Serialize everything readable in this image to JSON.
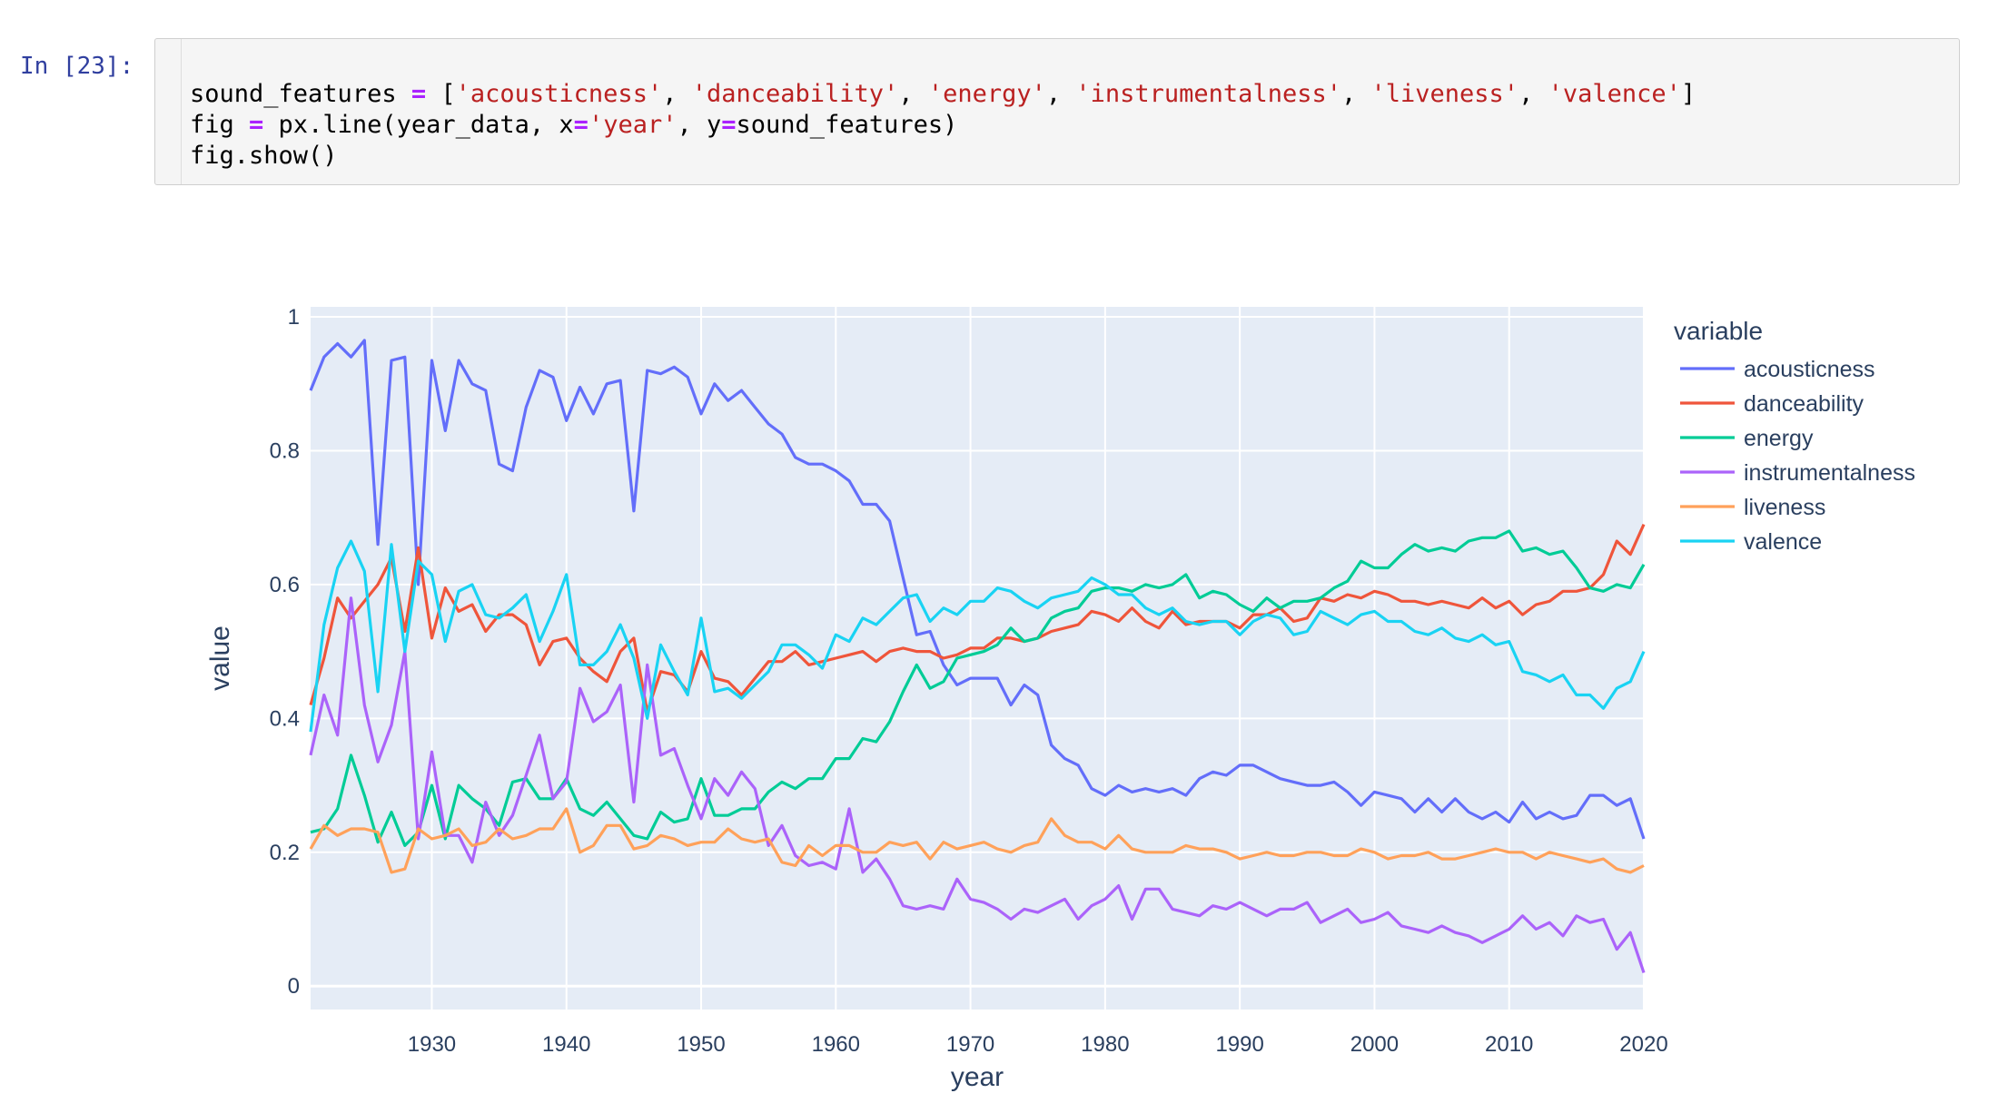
{
  "notebook": {
    "prompt": "In [23]:",
    "code_lines": [
      [
        [
          "sound_features ",
          ""
        ],
        [
          "=",
          "op"
        ],
        [
          " [",
          ""
        ],
        [
          "'acousticness'",
          "str"
        ],
        [
          ", ",
          ""
        ],
        [
          "'danceability'",
          "str"
        ],
        [
          ", ",
          ""
        ],
        [
          "'energy'",
          "str"
        ],
        [
          ", ",
          ""
        ],
        [
          "'instrumentalness'",
          "str"
        ],
        [
          ", ",
          ""
        ],
        [
          "'liveness'",
          "str"
        ],
        [
          ", ",
          ""
        ],
        [
          "'valence'",
          "str"
        ],
        [
          "]",
          ""
        ]
      ],
      [
        [
          "fig ",
          ""
        ],
        [
          "=",
          "op"
        ],
        [
          " px.line(year_data, x",
          ""
        ],
        [
          "=",
          "op"
        ],
        [
          "'year'",
          "str"
        ],
        [
          ", y",
          ""
        ],
        [
          "=",
          "op"
        ],
        [
          "sound_features)",
          ""
        ]
      ],
      [
        [
          "fig.show()",
          ""
        ]
      ]
    ]
  },
  "chart_data": {
    "type": "line",
    "xlabel": "year",
    "ylabel": "value",
    "legend_title": "variable",
    "xlim": [
      1921,
      2020
    ],
    "ylim": [
      -0.035,
      1.015
    ],
    "x_ticks": [
      1930,
      1940,
      1950,
      1960,
      1970,
      1980,
      1990,
      2000,
      2010,
      2020
    ],
    "y_ticks": [
      0,
      0.2,
      0.4,
      0.6,
      0.8,
      1
    ],
    "y_tick_labels": [
      "0",
      "0.2",
      "0.4",
      "0.6",
      "0.8",
      "1"
    ],
    "x_start": 1921,
    "x_step": 1,
    "plot_background": "#e5ecf6",
    "grid": true,
    "legend_position": "right",
    "series": [
      {
        "name": "acousticness",
        "color": "#636efa",
        "values": [
          0.89,
          0.94,
          0.96,
          0.94,
          0.965,
          0.66,
          0.935,
          0.94,
          0.6,
          0.935,
          0.83,
          0.935,
          0.9,
          0.89,
          0.78,
          0.77,
          0.865,
          0.92,
          0.91,
          0.845,
          0.895,
          0.855,
          0.9,
          0.905,
          0.71,
          0.92,
          0.915,
          0.925,
          0.91,
          0.855,
          0.9,
          0.875,
          0.89,
          0.865,
          0.84,
          0.825,
          0.79,
          0.78,
          0.78,
          0.77,
          0.755,
          0.72,
          0.72,
          0.695,
          0.61,
          0.525,
          0.53,
          0.48,
          0.45,
          0.46,
          0.46,
          0.46,
          0.42,
          0.45,
          0.435,
          0.36,
          0.34,
          0.33,
          0.295,
          0.285,
          0.3,
          0.29,
          0.295,
          0.29,
          0.295,
          0.285,
          0.31,
          0.32,
          0.315,
          0.33,
          0.33,
          0.32,
          0.31,
          0.305,
          0.3,
          0.3,
          0.305,
          0.29,
          0.27,
          0.29,
          0.285,
          0.28,
          0.26,
          0.28,
          0.26,
          0.28,
          0.26,
          0.25,
          0.26,
          0.245,
          0.275,
          0.25,
          0.26,
          0.25,
          0.255,
          0.285,
          0.285,
          0.27,
          0.28,
          0.22
        ]
      },
      {
        "name": "danceability",
        "color": "#ef553b",
        "values": [
          0.42,
          0.49,
          0.58,
          0.55,
          0.575,
          0.6,
          0.64,
          0.53,
          0.655,
          0.52,
          0.595,
          0.56,
          0.57,
          0.53,
          0.555,
          0.555,
          0.54,
          0.48,
          0.515,
          0.52,
          0.49,
          0.47,
          0.455,
          0.5,
          0.52,
          0.41,
          0.47,
          0.465,
          0.44,
          0.5,
          0.46,
          0.455,
          0.435,
          0.46,
          0.485,
          0.485,
          0.5,
          0.48,
          0.485,
          0.49,
          0.495,
          0.5,
          0.485,
          0.5,
          0.505,
          0.5,
          0.5,
          0.49,
          0.495,
          0.505,
          0.505,
          0.52,
          0.52,
          0.515,
          0.52,
          0.53,
          0.535,
          0.54,
          0.56,
          0.555,
          0.545,
          0.565,
          0.545,
          0.535,
          0.56,
          0.54,
          0.545,
          0.545,
          0.545,
          0.535,
          0.555,
          0.555,
          0.565,
          0.545,
          0.55,
          0.58,
          0.575,
          0.585,
          0.58,
          0.59,
          0.585,
          0.575,
          0.575,
          0.57,
          0.575,
          0.57,
          0.565,
          0.58,
          0.565,
          0.575,
          0.555,
          0.57,
          0.575,
          0.59,
          0.59,
          0.595,
          0.615,
          0.665,
          0.645,
          0.69
        ]
      },
      {
        "name": "energy",
        "color": "#00cc96",
        "values": [
          0.23,
          0.235,
          0.265,
          0.345,
          0.285,
          0.215,
          0.26,
          0.21,
          0.23,
          0.3,
          0.22,
          0.3,
          0.28,
          0.265,
          0.24,
          0.305,
          0.31,
          0.28,
          0.28,
          0.31,
          0.265,
          0.255,
          0.275,
          0.25,
          0.225,
          0.22,
          0.26,
          0.245,
          0.25,
          0.31,
          0.255,
          0.255,
          0.265,
          0.265,
          0.29,
          0.305,
          0.295,
          0.31,
          0.31,
          0.34,
          0.34,
          0.37,
          0.365,
          0.395,
          0.44,
          0.48,
          0.445,
          0.455,
          0.49,
          0.495,
          0.5,
          0.51,
          0.535,
          0.515,
          0.52,
          0.55,
          0.56,
          0.565,
          0.59,
          0.595,
          0.595,
          0.59,
          0.6,
          0.595,
          0.6,
          0.615,
          0.58,
          0.59,
          0.585,
          0.57,
          0.56,
          0.58,
          0.565,
          0.575,
          0.575,
          0.58,
          0.595,
          0.605,
          0.635,
          0.625,
          0.625,
          0.645,
          0.66,
          0.65,
          0.655,
          0.65,
          0.665,
          0.67,
          0.67,
          0.68,
          0.65,
          0.655,
          0.645,
          0.65,
          0.625,
          0.595,
          0.59,
          0.6,
          0.595,
          0.63
        ]
      },
      {
        "name": "instrumentalness",
        "color": "#ab63fa",
        "values": [
          0.345,
          0.435,
          0.375,
          0.58,
          0.42,
          0.335,
          0.39,
          0.5,
          0.22,
          0.35,
          0.225,
          0.225,
          0.185,
          0.275,
          0.225,
          0.255,
          0.315,
          0.375,
          0.28,
          0.305,
          0.445,
          0.395,
          0.41,
          0.45,
          0.275,
          0.48,
          0.345,
          0.355,
          0.3,
          0.25,
          0.31,
          0.285,
          0.32,
          0.295,
          0.21,
          0.24,
          0.195,
          0.18,
          0.185,
          0.175,
          0.265,
          0.17,
          0.19,
          0.16,
          0.12,
          0.115,
          0.12,
          0.115,
          0.16,
          0.13,
          0.125,
          0.115,
          0.1,
          0.115,
          0.11,
          0.12,
          0.13,
          0.1,
          0.12,
          0.13,
          0.15,
          0.1,
          0.145,
          0.145,
          0.115,
          0.11,
          0.105,
          0.12,
          0.115,
          0.125,
          0.115,
          0.105,
          0.115,
          0.115,
          0.125,
          0.095,
          0.105,
          0.115,
          0.095,
          0.1,
          0.11,
          0.09,
          0.085,
          0.08,
          0.09,
          0.08,
          0.075,
          0.065,
          0.075,
          0.085,
          0.105,
          0.085,
          0.095,
          0.075,
          0.105,
          0.095,
          0.1,
          0.055,
          0.08,
          0.02
        ]
      },
      {
        "name": "liveness",
        "color": "#ffa15a",
        "values": [
          0.205,
          0.24,
          0.225,
          0.235,
          0.235,
          0.23,
          0.17,
          0.175,
          0.235,
          0.22,
          0.225,
          0.235,
          0.21,
          0.215,
          0.235,
          0.22,
          0.225,
          0.235,
          0.235,
          0.265,
          0.2,
          0.21,
          0.24,
          0.24,
          0.205,
          0.21,
          0.225,
          0.22,
          0.21,
          0.215,
          0.215,
          0.235,
          0.22,
          0.215,
          0.22,
          0.185,
          0.18,
          0.21,
          0.195,
          0.21,
          0.21,
          0.2,
          0.2,
          0.215,
          0.21,
          0.215,
          0.19,
          0.215,
          0.205,
          0.21,
          0.215,
          0.205,
          0.2,
          0.21,
          0.215,
          0.25,
          0.225,
          0.215,
          0.215,
          0.205,
          0.225,
          0.205,
          0.2,
          0.2,
          0.2,
          0.21,
          0.205,
          0.205,
          0.2,
          0.19,
          0.195,
          0.2,
          0.195,
          0.195,
          0.2,
          0.2,
          0.195,
          0.195,
          0.205,
          0.2,
          0.19,
          0.195,
          0.195,
          0.2,
          0.19,
          0.19,
          0.195,
          0.2,
          0.205,
          0.2,
          0.2,
          0.19,
          0.2,
          0.195,
          0.19,
          0.185,
          0.19,
          0.175,
          0.17,
          0.18
        ]
      },
      {
        "name": "valence",
        "color": "#19d3f3",
        "values": [
          0.38,
          0.54,
          0.625,
          0.665,
          0.62,
          0.44,
          0.66,
          0.5,
          0.635,
          0.615,
          0.515,
          0.59,
          0.6,
          0.555,
          0.55,
          0.565,
          0.585,
          0.515,
          0.56,
          0.615,
          0.48,
          0.48,
          0.5,
          0.54,
          0.49,
          0.4,
          0.51,
          0.47,
          0.435,
          0.55,
          0.44,
          0.445,
          0.43,
          0.45,
          0.47,
          0.51,
          0.51,
          0.495,
          0.475,
          0.525,
          0.515,
          0.55,
          0.54,
          0.56,
          0.58,
          0.585,
          0.545,
          0.565,
          0.555,
          0.575,
          0.575,
          0.595,
          0.59,
          0.575,
          0.565,
          0.58,
          0.585,
          0.59,
          0.61,
          0.6,
          0.585,
          0.585,
          0.565,
          0.555,
          0.565,
          0.545,
          0.54,
          0.545,
          0.545,
          0.525,
          0.545,
          0.555,
          0.55,
          0.525,
          0.53,
          0.56,
          0.55,
          0.54,
          0.555,
          0.56,
          0.545,
          0.545,
          0.53,
          0.525,
          0.535,
          0.52,
          0.515,
          0.525,
          0.51,
          0.515,
          0.47,
          0.465,
          0.455,
          0.465,
          0.435,
          0.435,
          0.415,
          0.445,
          0.455,
          0.5
        ]
      }
    ]
  }
}
